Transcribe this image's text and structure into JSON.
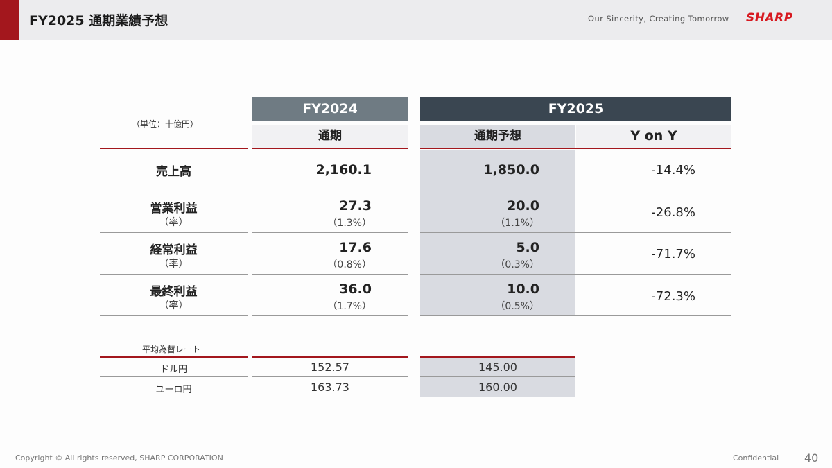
{
  "header": {
    "title": "FY2025 通期業績予想",
    "slogan": "Our Sincerity, Creating Tomorrow",
    "logo": "SHARP",
    "brand_color": "#d71920",
    "accent_color": "#a3171d"
  },
  "table": {
    "unit_note": "（単位：十億円）",
    "fy2024_header": "FY2024",
    "fy2025_header": "FY2025",
    "fy2024_sub": "通期",
    "fy2025_sub_forecast": "通期予想",
    "fy2025_sub_yoy": "Y on Y",
    "rows": [
      {
        "label": "売上高",
        "rate_label": "",
        "fy2024": "2,160.1",
        "fy2024_rate": "",
        "fy2025": "1,850.0",
        "fy2025_rate": "",
        "yoy": "-14.4%"
      },
      {
        "label": "営業利益",
        "rate_label": "（率）",
        "fy2024": "27.3",
        "fy2024_rate": "（1.3%）",
        "fy2025": "20.0",
        "fy2025_rate": "（1.1%）",
        "yoy": "-26.8%"
      },
      {
        "label": "経常利益",
        "rate_label": "（率）",
        "fy2024": "17.6",
        "fy2024_rate": "（0.8%）",
        "fy2025": "5.0",
        "fy2025_rate": "（0.3%）",
        "yoy": "-71.7%"
      },
      {
        "label": "最終利益",
        "rate_label": "（率）",
        "fy2024": "36.0",
        "fy2024_rate": "（1.7%）",
        "fy2025": "10.0",
        "fy2025_rate": "（0.5%）",
        "yoy": "-72.3%"
      }
    ]
  },
  "fx": {
    "title": "平均為替レート",
    "rows": [
      {
        "label": "ドル円",
        "fy2024": "152.57",
        "fy2025": "145.00"
      },
      {
        "label": "ユーロ円",
        "fy2024": "163.73",
        "fy2025": "160.00"
      }
    ]
  },
  "footer": {
    "copyright": "Copyright © All rights reserved, SHARP CORPORATION",
    "confidential": "Confidential",
    "page": "40"
  }
}
